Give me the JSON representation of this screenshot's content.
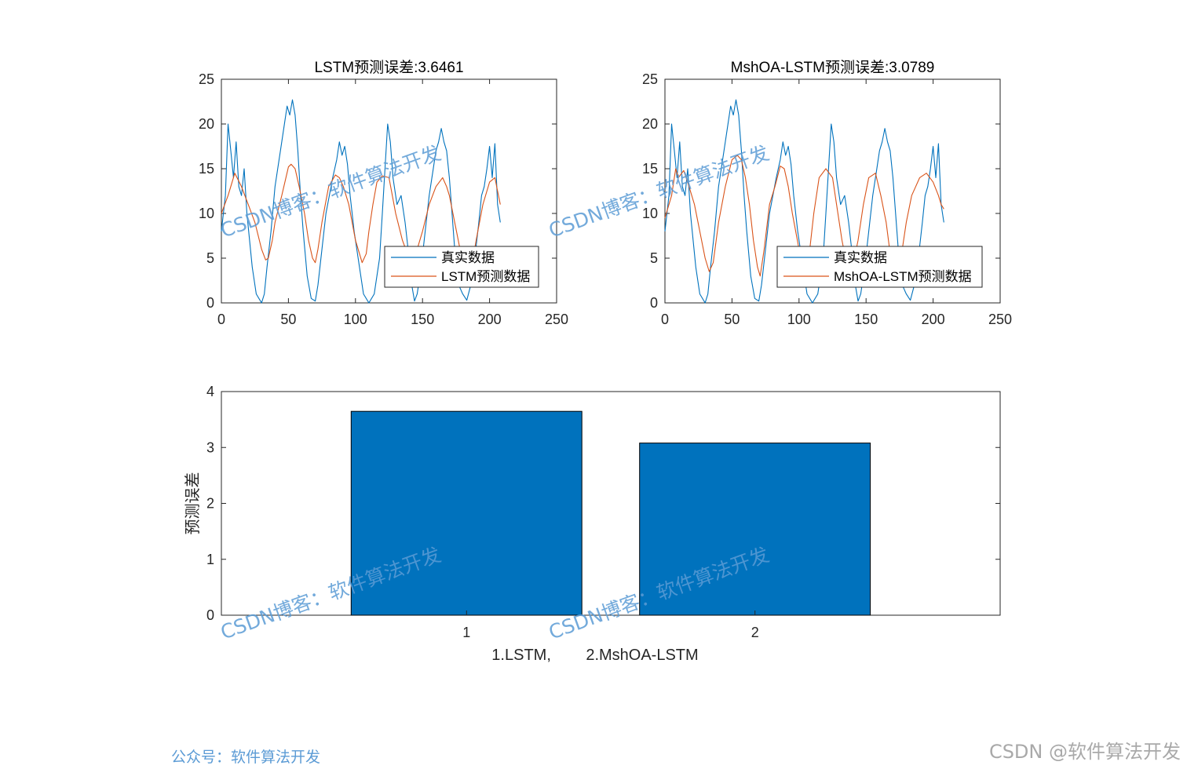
{
  "colors": {
    "real": "#0072BD",
    "pred": "#D95319",
    "bar": "#0072BD",
    "watermark": "#5b9bd5"
  },
  "watermarks": [
    "CSDN博客：软件算法开发",
    "CSDN博客：软件算法开发",
    "CSDN博客：软件算法开发",
    "CSDN博客：软件算法开发"
  ],
  "footer": {
    "left": "公众号：软件算法开发",
    "right": "CSDN @软件算法开发"
  },
  "chart_data": [
    {
      "type": "line",
      "title": "LSTM预测误差:3.6461",
      "xlim": [
        0,
        250
      ],
      "ylim": [
        0,
        25
      ],
      "xticks": [
        "0",
        "50",
        "100",
        "150",
        "200",
        "250"
      ],
      "yticks": [
        "0",
        "5",
        "10",
        "15",
        "20",
        "25"
      ],
      "legend_position": "bottom-right",
      "series": [
        {
          "name": "真实数据",
          "x": [
            0,
            3,
            5,
            7,
            9,
            11,
            13,
            15,
            17,
            19,
            21,
            23,
            26,
            30,
            32,
            34,
            37,
            40,
            44,
            47,
            49,
            51,
            53,
            55,
            57,
            59,
            61,
            64,
            67,
            70,
            72,
            75,
            78,
            83,
            86,
            88,
            90,
            92,
            94,
            96,
            99,
            103,
            106,
            110,
            114,
            118,
            120,
            122,
            124,
            126,
            128,
            131,
            134,
            137,
            140,
            142,
            144,
            146,
            149,
            152,
            155,
            158,
            160,
            162,
            164,
            166,
            168,
            170,
            172,
            174,
            177,
            180,
            183,
            186,
            189,
            192,
            194,
            196,
            198,
            200,
            202,
            204,
            206,
            208
          ],
          "y": [
            8,
            12,
            20,
            17,
            14,
            18,
            13,
            12,
            15,
            10,
            7,
            4,
            1,
            0,
            1,
            4,
            8,
            13,
            17,
            20,
            22,
            21,
            22.7,
            21,
            17,
            12,
            8,
            3,
            0.5,
            0.2,
            2,
            6,
            10,
            14,
            16,
            18,
            16.5,
            17.5,
            15.5,
            12,
            8,
            4,
            1,
            0,
            1,
            5,
            10,
            15,
            20,
            18,
            14,
            11,
            12,
            9,
            5,
            2,
            0.2,
            1,
            4,
            8,
            12,
            15,
            17,
            18,
            19.5,
            18,
            17,
            14,
            10,
            6,
            2,
            1,
            0.3,
            2,
            5,
            9,
            12,
            13,
            15,
            17.5,
            14,
            17.8,
            11,
            9
          ]
        },
        {
          "name": "LSTM预测数据",
          "x": [
            0,
            5,
            10,
            15,
            20,
            25,
            30,
            33,
            35,
            38,
            40,
            45,
            50,
            52,
            55,
            58,
            62,
            65,
            68,
            70,
            72,
            75,
            80,
            85,
            88,
            91,
            95,
            100,
            105,
            108,
            110,
            113,
            116,
            120,
            125,
            130,
            135,
            140,
            145,
            150,
            155,
            160,
            165,
            168,
            170,
            174,
            178,
            183,
            186,
            190,
            195,
            200,
            204,
            206,
            208
          ],
          "y": [
            10,
            12,
            14.5,
            13,
            11,
            9,
            6,
            4.8,
            5,
            7,
            9,
            12,
            15.2,
            15.5,
            15,
            13,
            10,
            7,
            5,
            4.5,
            6,
            9,
            13,
            14.3,
            14,
            13,
            11,
            7,
            4.5,
            5.5,
            8,
            11,
            13.5,
            14.2,
            14,
            10,
            7,
            5,
            5.5,
            8,
            11,
            13,
            14,
            13,
            12,
            9,
            6,
            4,
            3.5,
            7,
            11,
            13.5,
            14,
            12.5,
            11
          ]
        }
      ]
    },
    {
      "type": "line",
      "title": "MshOA-LSTM预测误差:3.0789",
      "xlim": [
        0,
        250
      ],
      "ylim": [
        0,
        25
      ],
      "xticks": [
        "0",
        "50",
        "100",
        "150",
        "200",
        "250"
      ],
      "yticks": [
        "0",
        "5",
        "10",
        "15",
        "20",
        "25"
      ],
      "legend_position": "bottom-right",
      "series": [
        {
          "name": "真实数据",
          "x": [
            0,
            3,
            5,
            7,
            9,
            11,
            13,
            15,
            17,
            19,
            21,
            23,
            26,
            30,
            32,
            34,
            37,
            40,
            44,
            47,
            49,
            51,
            53,
            55,
            57,
            59,
            61,
            64,
            67,
            70,
            72,
            75,
            78,
            83,
            86,
            88,
            90,
            92,
            94,
            96,
            99,
            103,
            106,
            110,
            114,
            118,
            120,
            122,
            124,
            126,
            128,
            131,
            134,
            137,
            140,
            142,
            144,
            146,
            149,
            152,
            155,
            158,
            160,
            162,
            164,
            166,
            168,
            170,
            172,
            174,
            177,
            180,
            183,
            186,
            189,
            192,
            194,
            196,
            198,
            200,
            202,
            204,
            206,
            208
          ],
          "y": [
            8,
            12,
            20,
            17,
            14,
            18,
            13,
            12,
            15,
            10,
            7,
            4,
            1,
            0,
            1,
            4,
            8,
            13,
            17,
            20,
            22,
            21,
            22.7,
            21,
            17,
            12,
            8,
            3,
            0.5,
            0.2,
            2,
            6,
            10,
            14,
            16,
            18,
            16.5,
            17.5,
            15.5,
            12,
            8,
            4,
            1,
            0,
            1,
            5,
            10,
            15,
            20,
            18,
            14,
            11,
            12,
            9,
            5,
            2,
            0.2,
            1,
            4,
            8,
            12,
            15,
            17,
            18,
            19.5,
            18,
            17,
            14,
            10,
            6,
            2,
            1,
            0.3,
            2,
            5,
            9,
            12,
            13,
            15,
            17.5,
            14,
            17.8,
            11,
            9
          ]
        },
        {
          "name": "MshOA-LSTM预测数据",
          "x": [
            0,
            5,
            8,
            10,
            14,
            18,
            22,
            26,
            30,
            33,
            36,
            40,
            45,
            50,
            54,
            57,
            60,
            63,
            66,
            69,
            71,
            74,
            78,
            82,
            86,
            89,
            92,
            95,
            100,
            104,
            108,
            111,
            115,
            120,
            125,
            128,
            132,
            136,
            140,
            144,
            148,
            152,
            157,
            161,
            165,
            168,
            171,
            175,
            180,
            184,
            187,
            190,
            195,
            200,
            204,
            206,
            208
          ],
          "y": [
            9.5,
            12,
            15,
            14,
            14.8,
            13,
            11,
            8,
            5,
            3.5,
            4.5,
            9,
            13,
            16,
            16.5,
            16,
            14,
            11,
            7,
            4,
            3,
            6,
            11,
            13,
            15.3,
            15,
            13,
            10,
            6,
            4.2,
            6,
            10,
            14,
            15,
            14,
            11,
            7,
            4,
            4,
            7,
            11,
            14,
            14.5,
            12,
            9,
            5.5,
            3.5,
            4,
            9,
            12,
            13,
            14,
            14.5,
            13.5,
            12,
            11,
            10.5
          ]
        }
      ]
    },
    {
      "type": "bar",
      "categories": [
        "1",
        "2"
      ],
      "values": [
        3.6461,
        3.0789
      ],
      "xlabel": "1.LSTM,        2.MshOA-LSTM",
      "ylabel": "预测误差",
      "ylim": [
        0,
        4
      ],
      "yticks": [
        "0",
        "1",
        "2",
        "3",
        "4"
      ]
    }
  ]
}
